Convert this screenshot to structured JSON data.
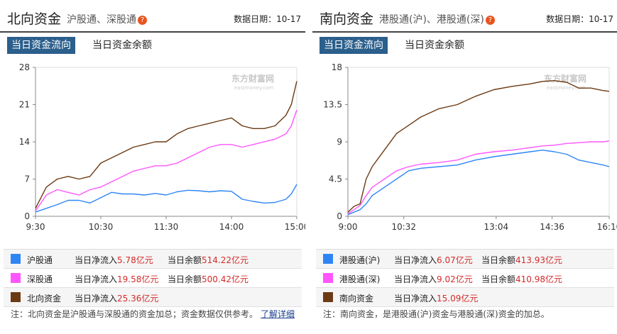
{
  "left": {
    "title": "北向资金",
    "subtitle": "沪股通、深股通",
    "help": "?",
    "date_label": "数据日期：",
    "date_value": "10-17",
    "tabs": [
      "当日资金流向",
      "当日资金余额"
    ],
    "watermark": "东方财富网",
    "watermark_url": "eastmoney.com",
    "legend": [
      {
        "name": "沪股通",
        "color": "#2e86f5",
        "flow_label": "当日净流入",
        "flow": "5.78亿元",
        "bal_label": "当日余额",
        "bal": "514.22亿元"
      },
      {
        "name": "深股通",
        "color": "#ff55ff",
        "flow_label": "当日净流入",
        "flow": "19.58亿元",
        "bal_label": "当日余额",
        "bal": "500.42亿元"
      },
      {
        "name": "北向资金",
        "color": "#6b3a13",
        "flow_label": "当日净流入",
        "flow": "25.36亿元",
        "bal_label": "",
        "bal": ""
      }
    ],
    "note": "注：北向资金是沪股通与深股通的资金加总；资金数据仅供参考。",
    "note_link": "了解详细"
  },
  "right": {
    "title": "南向资金",
    "subtitle": "港股通(沪)、港股通(深)",
    "help": "?",
    "date_label": "数据日期：",
    "date_value": "10-17",
    "tabs": [
      "当日资金流向",
      "当日资金余额"
    ],
    "watermark": "东方财富网",
    "watermark_url": "eastmoney.com",
    "legend": [
      {
        "name": "港股通(沪)",
        "color": "#2e86f5",
        "flow_label": "当日净流入",
        "flow": "6.07亿元",
        "bal_label": "当日余额",
        "bal": "413.93亿元"
      },
      {
        "name": "港股通(深)",
        "color": "#ff55ff",
        "flow_label": "当日净流入",
        "flow": "9.02亿元",
        "bal_label": "当日余额",
        "bal": "410.98亿元"
      },
      {
        "name": "南向资金",
        "color": "#6b3a13",
        "flow_label": "当日净流入",
        "flow": "15.09亿元",
        "bal_label": "",
        "bal": ""
      }
    ],
    "note": "注：南向资金，是港股通(沪)资金与港股通(深)资金的加总。"
  },
  "chart_data": [
    {
      "type": "line",
      "ylim": [
        0,
        28
      ],
      "yticks": [
        "0",
        "7",
        "14",
        "21",
        "28"
      ],
      "xlim": [
        "09:30",
        "15:00"
      ],
      "xticks": [
        "9:30",
        "10:30",
        "11:30",
        "14:00",
        "15:00"
      ],
      "grid": false,
      "series": [
        {
          "name": "沪股通",
          "color": "#2e86f5",
          "x": [
            "09:30",
            "09:40",
            "09:50",
            "10:00",
            "10:10",
            "10:20",
            "10:30",
            "10:40",
            "10:50",
            "11:00",
            "11:10",
            "11:20",
            "11:30",
            "13:10",
            "13:20",
            "13:30",
            "13:40",
            "13:50",
            "14:00",
            "14:10",
            "14:20",
            "14:30",
            "14:40",
            "14:50",
            "14:55",
            "15:00"
          ],
          "values": [
            0.8,
            1.5,
            2.2,
            3.0,
            3.0,
            2.5,
            3.5,
            4.5,
            4.2,
            4.2,
            4.0,
            4.3,
            4.0,
            4.6,
            4.9,
            4.8,
            4.6,
            4.8,
            4.7,
            3.2,
            2.8,
            2.5,
            2.6,
            3.2,
            4.2,
            6.0
          ]
        },
        {
          "name": "深股通",
          "color": "#ff55ff",
          "x": [
            "09:30",
            "09:40",
            "09:50",
            "10:00",
            "10:10",
            "10:20",
            "10:30",
            "10:40",
            "10:50",
            "11:00",
            "11:10",
            "11:20",
            "11:30",
            "13:10",
            "13:20",
            "13:30",
            "13:40",
            "13:50",
            "14:00",
            "14:10",
            "14:20",
            "14:30",
            "14:40",
            "14:50",
            "14:55",
            "15:00"
          ],
          "values": [
            1.0,
            4.0,
            5.0,
            4.5,
            4.0,
            5.0,
            5.5,
            6.5,
            7.5,
            8.5,
            9.0,
            9.5,
            9.5,
            10.0,
            11.0,
            12.0,
            13.0,
            13.5,
            13.5,
            13.0,
            13.5,
            14.0,
            14.5,
            15.5,
            17.0,
            20.0
          ]
        },
        {
          "name": "北向资金",
          "color": "#6b3a13",
          "x": [
            "09:30",
            "09:40",
            "09:50",
            "10:00",
            "10:10",
            "10:20",
            "10:30",
            "10:40",
            "10:50",
            "11:00",
            "11:10",
            "11:20",
            "11:30",
            "13:10",
            "13:20",
            "13:30",
            "13:40",
            "13:50",
            "14:00",
            "14:10",
            "14:20",
            "14:30",
            "14:40",
            "14:50",
            "14:55",
            "15:00"
          ],
          "values": [
            1.5,
            5.5,
            7.0,
            7.5,
            7.0,
            7.5,
            10.0,
            11.0,
            12.0,
            13.0,
            13.5,
            14.0,
            14.0,
            15.5,
            16.5,
            17.0,
            17.5,
            18.0,
            18.5,
            17.0,
            16.5,
            16.5,
            17.0,
            19.0,
            21.0,
            25.4
          ]
        }
      ]
    },
    {
      "type": "line",
      "ylim": [
        0,
        18
      ],
      "yticks": [
        "0",
        "4.5",
        "9",
        "13.5",
        "18"
      ],
      "xlim": [
        "09:00",
        "16:10"
      ],
      "xticks": [
        "9:00",
        "10:32",
        "13:04",
        "14:36",
        "16:10"
      ],
      "grid": false,
      "series": [
        {
          "name": "港股通(沪)",
          "color": "#2e86f5",
          "x": [
            "09:00",
            "09:10",
            "09:20",
            "09:30",
            "09:40",
            "10:00",
            "10:20",
            "10:40",
            "11:00",
            "11:30",
            "12:00",
            "12:30",
            "13:00",
            "13:30",
            "14:00",
            "14:20",
            "14:40",
            "15:00",
            "15:20",
            "15:40",
            "16:00",
            "16:10"
          ],
          "values": [
            0.2,
            0.5,
            0.8,
            1.5,
            2.5,
            3.5,
            4.5,
            5.5,
            5.8,
            6.0,
            6.2,
            6.8,
            7.2,
            7.5,
            7.8,
            8.0,
            7.8,
            7.5,
            6.8,
            6.5,
            6.2,
            6.0
          ]
        },
        {
          "name": "港股通(深)",
          "color": "#ff55ff",
          "x": [
            "09:00",
            "09:10",
            "09:20",
            "09:30",
            "09:40",
            "10:00",
            "10:20",
            "10:40",
            "11:00",
            "11:30",
            "12:00",
            "12:30",
            "13:00",
            "13:30",
            "14:00",
            "14:20",
            "14:40",
            "15:00",
            "15:20",
            "15:40",
            "16:00",
            "16:10"
          ],
          "values": [
            0.3,
            0.8,
            1.3,
            2.5,
            3.5,
            4.5,
            5.5,
            6.0,
            6.3,
            6.5,
            6.8,
            7.5,
            7.8,
            8.0,
            8.3,
            8.5,
            8.6,
            8.8,
            8.9,
            9.0,
            9.0,
            9.1
          ]
        },
        {
          "name": "南向资金",
          "color": "#6b3a13",
          "x": [
            "09:00",
            "09:10",
            "09:20",
            "09:30",
            "09:40",
            "10:00",
            "10:20",
            "10:40",
            "11:00",
            "11:30",
            "12:00",
            "12:30",
            "13:00",
            "13:30",
            "14:00",
            "14:20",
            "14:40",
            "15:00",
            "15:20",
            "15:40",
            "16:00",
            "16:10"
          ],
          "values": [
            0.5,
            1.2,
            1.5,
            4.5,
            6.0,
            8.0,
            10.0,
            11.0,
            12.0,
            13.0,
            13.5,
            14.5,
            15.3,
            15.7,
            16.0,
            16.3,
            16.4,
            16.2,
            15.5,
            15.5,
            15.2,
            15.1
          ]
        }
      ]
    }
  ]
}
